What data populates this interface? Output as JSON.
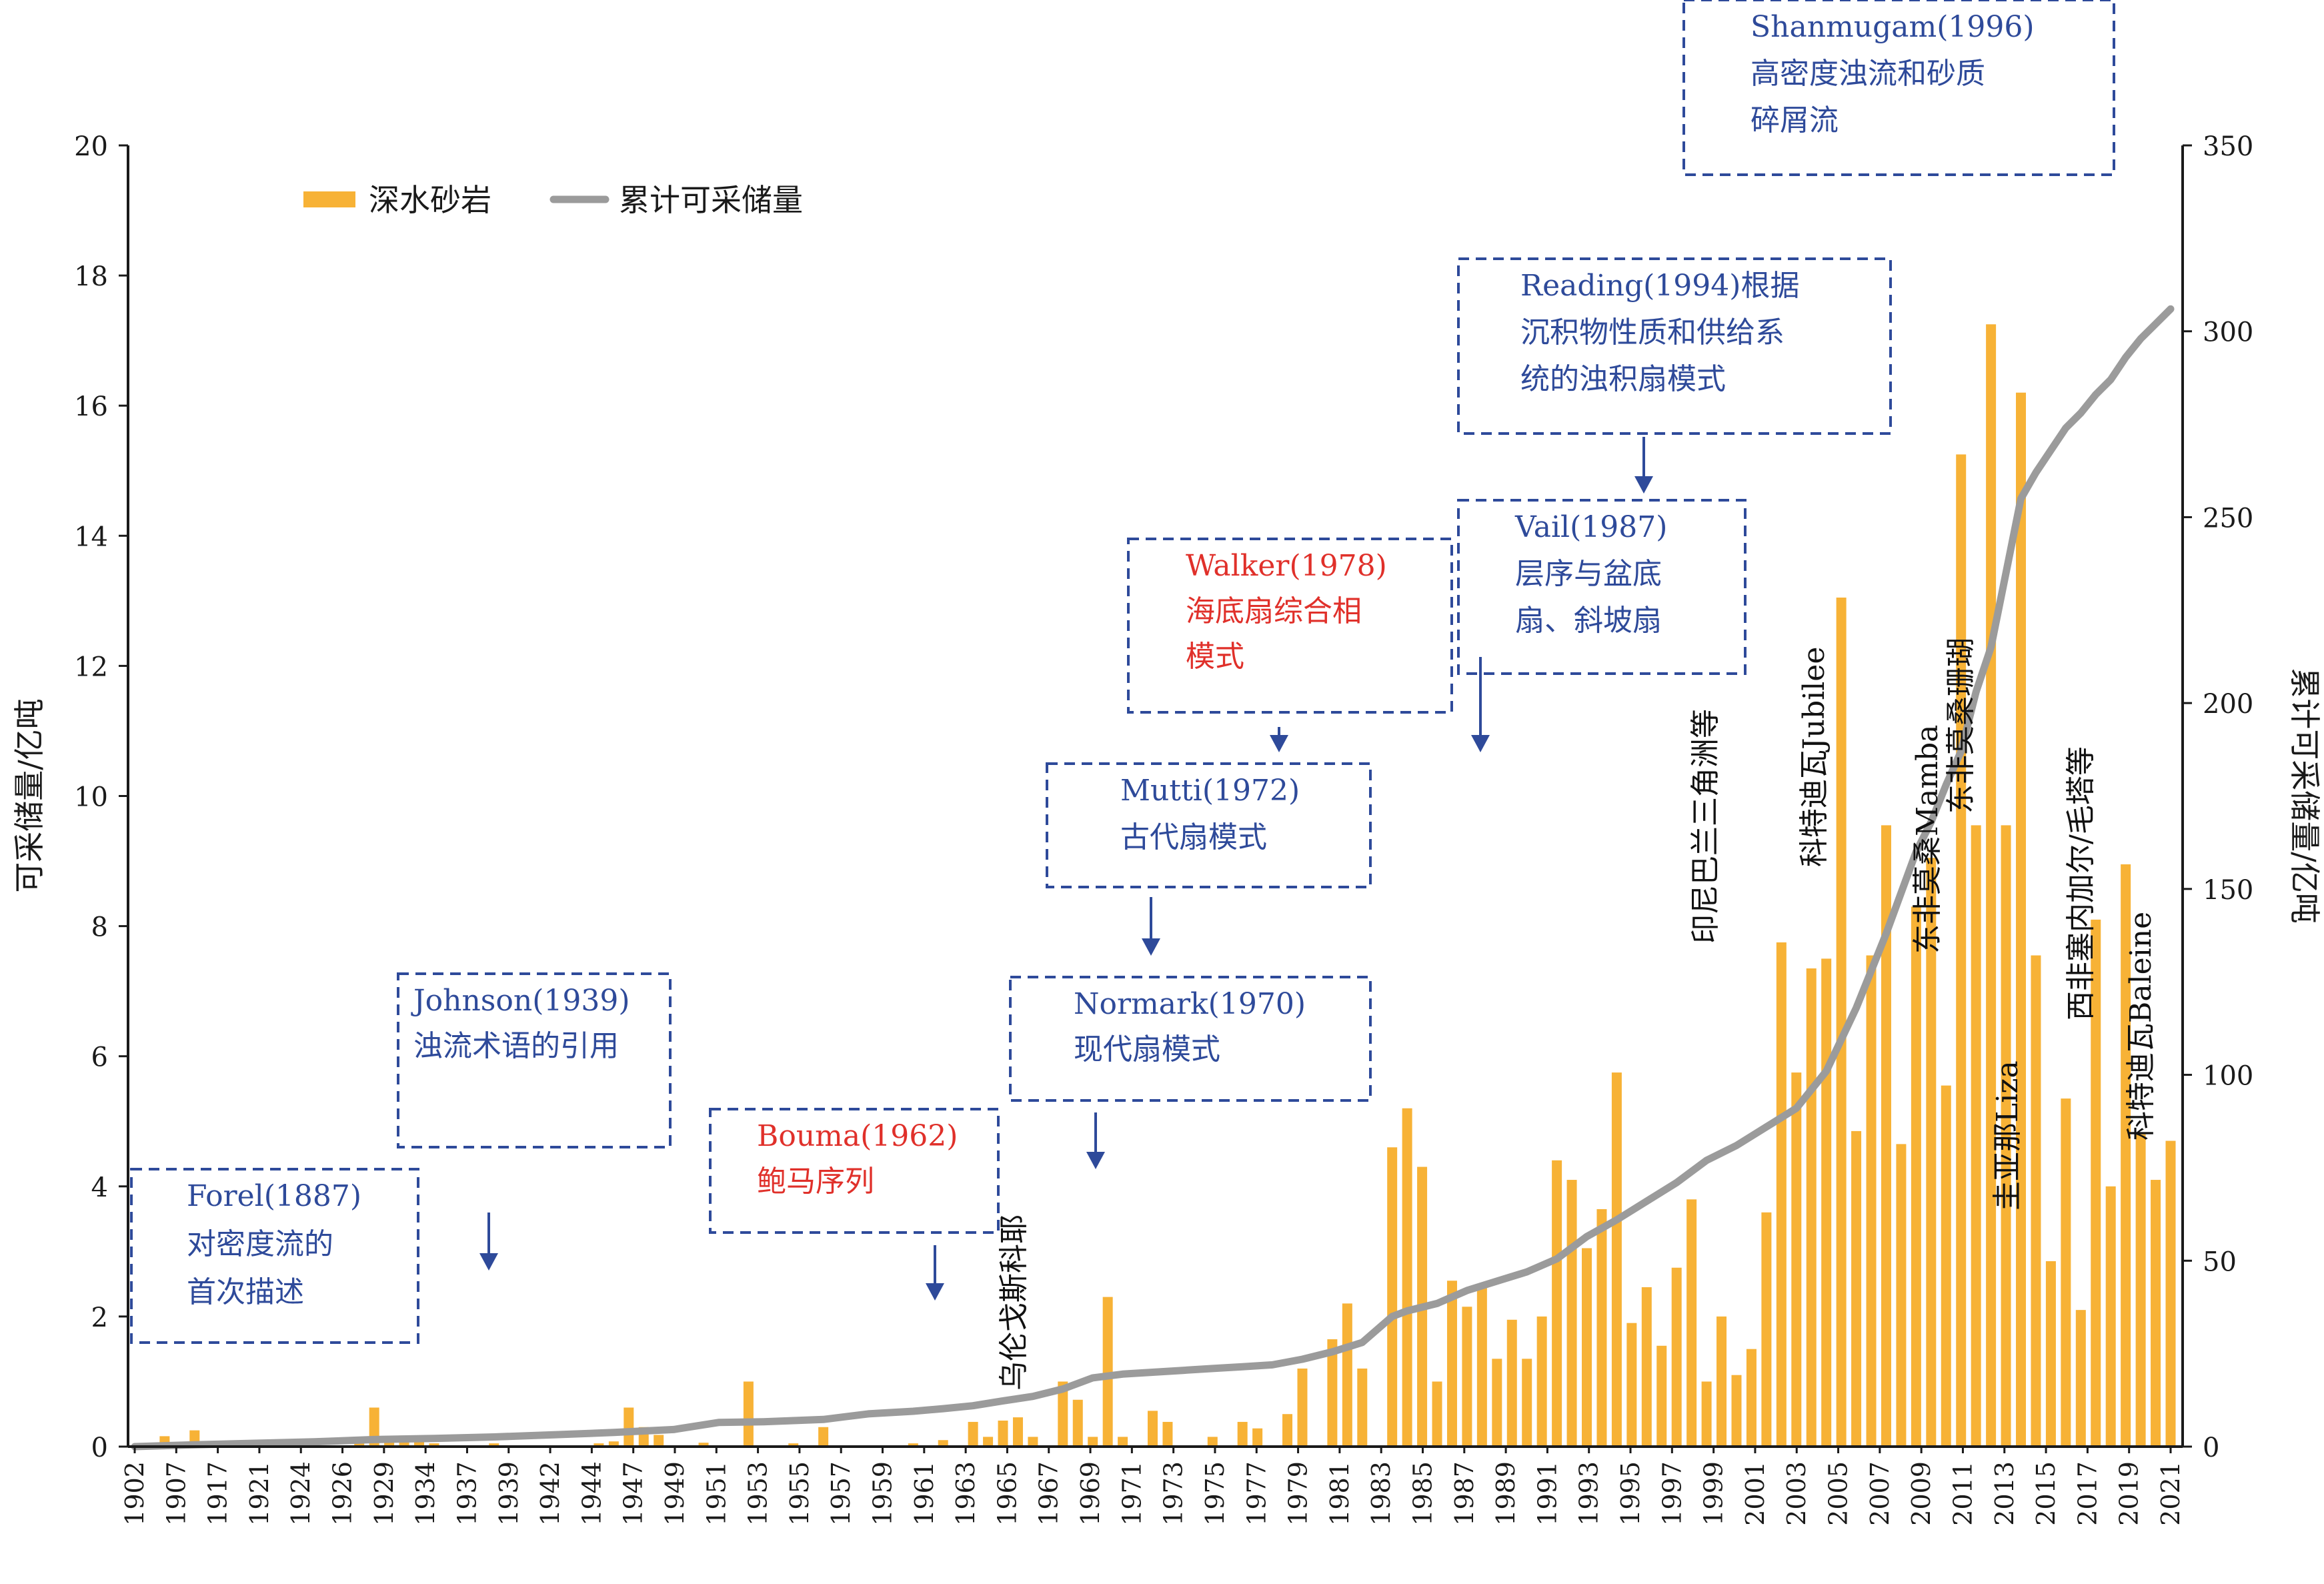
{
  "colors": {
    "bar": "#F7B236",
    "line": "#9B9B9B",
    "axis": "#1a1a1a",
    "box_border": "#2E4A9A",
    "box_text_blue": "#2E4A9A",
    "box_text_red": "#E0302A",
    "arrow": "#2E4A9A"
  },
  "chart_data": {
    "type": "bar",
    "title": "",
    "ylabel_left": "可采储量/亿吨",
    "ylabel_right": "累计可采储量/亿吨",
    "ylim_left": [
      0,
      20
    ],
    "yticks_left": [
      "0",
      "2",
      "4",
      "6",
      "8",
      "10",
      "12",
      "14",
      "16",
      "18",
      "20"
    ],
    "ylim_right": [
      0,
      350
    ],
    "yticks_right": [
      "0",
      "50",
      "100",
      "150",
      "200",
      "250",
      "300",
      "350"
    ],
    "x_ticks": [
      "1902",
      "1907",
      "1917",
      "1921",
      "1924",
      "1926",
      "1929",
      "1934",
      "1937",
      "1939",
      "1942",
      "1944",
      "1947",
      "1949",
      "1951",
      "1953",
      "1955",
      "1957",
      "1959",
      "1961",
      "1963",
      "1965",
      "1967",
      "1969",
      "1971",
      "1973",
      "1975",
      "1977",
      "1979",
      "1981",
      "1983",
      "1985",
      "1987",
      "1989",
      "1991",
      "1993",
      "1995",
      "1997",
      "1999",
      "2001",
      "2003",
      "2005",
      "2007",
      "2009",
      "2011",
      "2013",
      "2015",
      "2017",
      "2019",
      "2021"
    ],
    "legend": {
      "bar_label": "深水砂岩",
      "line_label": "累计可采储量",
      "placement": "top-left"
    },
    "bars": [
      {
        "t": 0.0,
        "v": 0.02
      },
      {
        "t": 1.0,
        "v": 0.16
      },
      {
        "t": 1.5,
        "v": 0.05
      },
      {
        "t": 2.0,
        "v": 0.25
      },
      {
        "t": 3.0,
        "v": 0.04
      },
      {
        "t": 4.0,
        "v": 0.03
      },
      {
        "t": 4.5,
        "v": 0.02
      },
      {
        "t": 5.0,
        "v": 0.03
      },
      {
        "t": 7.5,
        "v": 0.05
      },
      {
        "t": 8.0,
        "v": 0.6
      },
      {
        "t": 8.5,
        "v": 0.15
      },
      {
        "t": 9.0,
        "v": 0.17
      },
      {
        "t": 9.5,
        "v": 0.08
      },
      {
        "t": 10.0,
        "v": 0.05
      },
      {
        "t": 12.0,
        "v": 0.05
      },
      {
        "t": 15.5,
        "v": 0.05
      },
      {
        "t": 16.0,
        "v": 0.08
      },
      {
        "t": 16.5,
        "v": 0.6
      },
      {
        "t": 17.0,
        "v": 0.3
      },
      {
        "t": 17.5,
        "v": 0.18
      },
      {
        "t": 19.0,
        "v": 0.06
      },
      {
        "t": 20.5,
        "v": 1.0
      },
      {
        "t": 22.0,
        "v": 0.05
      },
      {
        "t": 23.0,
        "v": 0.3
      },
      {
        "t": 26.0,
        "v": 0.05
      },
      {
        "t": 27.0,
        "v": 0.1
      },
      {
        "t": 28.0,
        "v": 0.38
      },
      {
        "t": 28.5,
        "v": 0.15
      },
      {
        "t": 29.0,
        "v": 0.4
      },
      {
        "t": 29.5,
        "v": 0.45
      },
      {
        "t": 30.0,
        "v": 0.15
      },
      {
        "t": 31.0,
        "v": 1.0
      },
      {
        "t": 31.5,
        "v": 0.72
      },
      {
        "t": 32.0,
        "v": 0.15
      },
      {
        "t": 32.5,
        "v": 2.3
      },
      {
        "t": 33.0,
        "v": 0.15
      },
      {
        "t": 34.0,
        "v": 0.55
      },
      {
        "t": 34.5,
        "v": 0.38
      },
      {
        "t": 36.0,
        "v": 0.15
      },
      {
        "t": 37.0,
        "v": 0.38
      },
      {
        "t": 37.5,
        "v": 0.28
      },
      {
        "t": 38.5,
        "v": 0.5
      },
      {
        "t": 39.0,
        "v": 1.2
      },
      {
        "t": 40.0,
        "v": 1.65
      },
      {
        "t": 40.5,
        "v": 2.2
      },
      {
        "t": 41.0,
        "v": 1.2
      },
      {
        "t": 42.0,
        "v": 4.6
      },
      {
        "t": 42.5,
        "v": 5.2
      },
      {
        "t": 43.0,
        "v": 4.3
      },
      {
        "t": 43.5,
        "v": 1.0
      },
      {
        "t": 44.0,
        "v": 2.55
      },
      {
        "t": 44.5,
        "v": 2.15
      },
      {
        "t": 45.0,
        "v": 2.5
      },
      {
        "t": 45.5,
        "v": 1.35
      },
      {
        "t": 46.0,
        "v": 1.95
      },
      {
        "t": 46.5,
        "v": 1.35
      },
      {
        "t": 47.0,
        "v": 2.0
      },
      {
        "t": 47.5,
        "v": 4.4
      },
      {
        "t": 48.0,
        "v": 4.1
      },
      {
        "t": 48.5,
        "v": 3.05
      },
      {
        "t": 49.0,
        "v": 3.65
      },
      {
        "t": 49.5,
        "v": 5.75
      },
      {
        "t": 50.0,
        "v": 1.9
      },
      {
        "t": 50.5,
        "v": 2.45
      },
      {
        "t": 51.0,
        "v": 1.55
      },
      {
        "t": 51.5,
        "v": 2.75
      },
      {
        "t": 52.0,
        "v": 3.8
      },
      {
        "t": 52.5,
        "v": 1.0
      },
      {
        "t": 53.0,
        "v": 2.0
      },
      {
        "t": 53.5,
        "v": 1.1
      },
      {
        "t": 54.0,
        "v": 1.5
      },
      {
        "t": 54.5,
        "v": 3.6
      },
      {
        "t": 55.0,
        "v": 7.75
      },
      {
        "t": 55.5,
        "v": 5.75
      },
      {
        "t": 56.0,
        "v": 7.35
      },
      {
        "t": 56.5,
        "v": 7.5
      },
      {
        "t": 57.0,
        "v": 13.05
      },
      {
        "t": 57.5,
        "v": 4.85
      },
      {
        "t": 58.0,
        "v": 7.55
      },
      {
        "t": 58.5,
        "v": 9.55
      },
      {
        "t": 59.0,
        "v": 4.65
      },
      {
        "t": 59.5,
        "v": 8.3
      },
      {
        "t": 60.0,
        "v": 9.05
      },
      {
        "t": 60.5,
        "v": 5.55
      },
      {
        "t": 61.0,
        "v": 15.25
      },
      {
        "t": 61.5,
        "v": 9.55
      },
      {
        "t": 62.0,
        "v": 17.25
      },
      {
        "t": 62.5,
        "v": 9.55
      },
      {
        "t": 63.0,
        "v": 16.2
      },
      {
        "t": 63.5,
        "v": 7.55
      },
      {
        "t": 64.0,
        "v": 2.85
      },
      {
        "t": 64.5,
        "v": 5.35
      },
      {
        "t": 65.0,
        "v": 2.1
      },
      {
        "t": 65.5,
        "v": 8.1
      },
      {
        "t": 66.0,
        "v": 4.0
      },
      {
        "t": 66.5,
        "v": 8.95
      },
      {
        "t": 67.0,
        "v": 4.8
      },
      {
        "t": 67.5,
        "v": 4.1
      },
      {
        "t": 68.0,
        "v": 4.7
      }
    ],
    "cumulative": [
      {
        "t": 0.0,
        "v": 0.0
      },
      {
        "t": 2.0,
        "v": 0.5
      },
      {
        "t": 4.0,
        "v": 0.9
      },
      {
        "t": 6.0,
        "v": 1.3
      },
      {
        "t": 8.0,
        "v": 1.9
      },
      {
        "t": 10.0,
        "v": 2.2
      },
      {
        "t": 12.0,
        "v": 2.6
      },
      {
        "t": 14.0,
        "v": 3.2
      },
      {
        "t": 16.0,
        "v": 3.8
      },
      {
        "t": 18.0,
        "v": 4.6
      },
      {
        "t": 19.5,
        "v": 6.5
      },
      {
        "t": 21.0,
        "v": 6.7
      },
      {
        "t": 22.0,
        "v": 7.0
      },
      {
        "t": 23.0,
        "v": 7.3
      },
      {
        "t": 24.5,
        "v": 8.8
      },
      {
        "t": 26.0,
        "v": 9.5
      },
      {
        "t": 27.0,
        "v": 10.2
      },
      {
        "t": 28.0,
        "v": 11.0
      },
      {
        "t": 29.0,
        "v": 12.3
      },
      {
        "t": 30.0,
        "v": 13.5
      },
      {
        "t": 31.0,
        "v": 15.5
      },
      {
        "t": 32.0,
        "v": 18.5
      },
      {
        "t": 33.0,
        "v": 19.5
      },
      {
        "t": 34.0,
        "v": 20.0
      },
      {
        "t": 35.0,
        "v": 20.5
      },
      {
        "t": 36.0,
        "v": 21.0
      },
      {
        "t": 37.0,
        "v": 21.5
      },
      {
        "t": 38.0,
        "v": 22.0
      },
      {
        "t": 39.0,
        "v": 23.5
      },
      {
        "t": 40.0,
        "v": 25.5
      },
      {
        "t": 41.0,
        "v": 28.0
      },
      {
        "t": 42.0,
        "v": 35.0
      },
      {
        "t": 42.5,
        "v": 36.5
      },
      {
        "t": 43.5,
        "v": 38.5
      },
      {
        "t": 44.5,
        "v": 42.0
      },
      {
        "t": 45.5,
        "v": 44.5
      },
      {
        "t": 46.5,
        "v": 47.0
      },
      {
        "t": 47.5,
        "v": 50.5
      },
      {
        "t": 48.5,
        "v": 56.5
      },
      {
        "t": 49.5,
        "v": 61.0
      },
      {
        "t": 50.5,
        "v": 66.0
      },
      {
        "t": 51.5,
        "v": 71.0
      },
      {
        "t": 52.5,
        "v": 77.0
      },
      {
        "t": 53.5,
        "v": 81.0
      },
      {
        "t": 54.5,
        "v": 86.0
      },
      {
        "t": 55.5,
        "v": 91.0
      },
      {
        "t": 56.5,
        "v": 101.0
      },
      {
        "t": 57.5,
        "v": 118.0
      },
      {
        "t": 58.5,
        "v": 138.0
      },
      {
        "t": 59.5,
        "v": 160.0
      },
      {
        "t": 60.0,
        "v": 168.0
      },
      {
        "t": 60.5,
        "v": 178.0
      },
      {
        "t": 61.0,
        "v": 187.0
      },
      {
        "t": 61.5,
        "v": 203.0
      },
      {
        "t": 62.0,
        "v": 215.0
      },
      {
        "t": 62.5,
        "v": 235.0
      },
      {
        "t": 63.0,
        "v": 255.0
      },
      {
        "t": 63.5,
        "v": 262.0
      },
      {
        "t": 64.0,
        "v": 268.0
      },
      {
        "t": 64.5,
        "v": 274.0
      },
      {
        "t": 65.0,
        "v": 278.0
      },
      {
        "t": 65.5,
        "v": 283.0
      },
      {
        "t": 66.0,
        "v": 287.0
      },
      {
        "t": 66.5,
        "v": 293.0
      },
      {
        "t": 67.0,
        "v": 298.0
      },
      {
        "t": 67.5,
        "v": 302.0
      },
      {
        "t": 68.0,
        "v": 306.0
      }
    ]
  },
  "annotations": {
    "boxes": [
      {
        "line1": "Forel(1887)",
        "line2": "对密度流的",
        "line3": "首次描述",
        "color": "blue"
      },
      {
        "line1": "Johnson(1939)",
        "line2": "浊流术语的引用",
        "line3": "",
        "color": "blue"
      },
      {
        "line1": "Bouma(1962)",
        "line2": "鲍马序列",
        "line3": "",
        "color": "red"
      },
      {
        "line1": "Normark(1970)",
        "line2": "现代扇模式",
        "line3": "",
        "color": "blue"
      },
      {
        "line1": "Mutti(1972)",
        "line2": "古代扇模式",
        "line3": "",
        "color": "blue"
      },
      {
        "line1": "Walker(1978)",
        "line2": "海底扇综合相",
        "line3": "模式",
        "color": "red"
      },
      {
        "line1": "Vail(1987)",
        "line2": "层序与盆底",
        "line3": "扇、斜坡扇",
        "color": "blue"
      },
      {
        "line1": "Reading(1994)根据",
        "line2": "沉积物性质和供给系",
        "line3": "统的浊积扇模式",
        "color": "blue"
      },
      {
        "line1": "Shanmugam(1996)",
        "line2": "高密度浊流和砂质",
        "line3": "碎屑流",
        "color": "blue"
      }
    ],
    "vertical_labels": [
      "乌伦戈斯科耶",
      "印尼巴兰三角洲等",
      "科特迪瓦Jubilee",
      "东非莫桑Mamba",
      "东非莫桑珊瑚",
      "圭亚那Liza",
      "西非塞内加尔/毛塔等",
      "科特迪瓦Baleine"
    ]
  }
}
